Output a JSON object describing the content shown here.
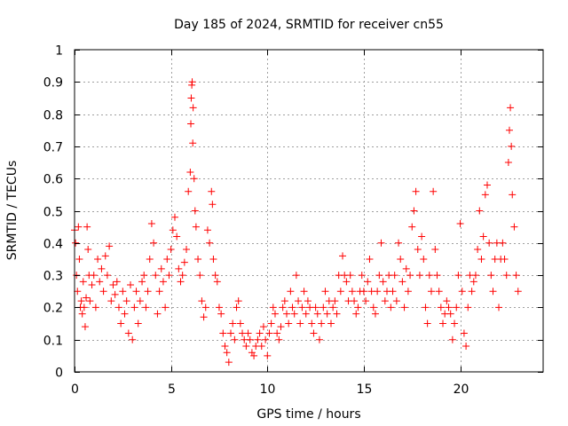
{
  "chart_data": {
    "type": "scatter",
    "title": "Day 185 of 2024, SRMTID for receiver cn55",
    "xlabel": "GPS time / hours",
    "ylabel": "SRMTID / TECUs",
    "xlim": [
      0,
      24.3
    ],
    "ylim": [
      0,
      1
    ],
    "x_ticks": [
      0,
      5,
      10,
      15,
      20
    ],
    "x_tick_labels": [
      "0",
      "5",
      "10",
      "15",
      "20"
    ],
    "y_ticks": [
      0,
      0.1,
      0.2,
      0.3,
      0.4,
      0.5,
      0.6,
      0.7,
      0.8,
      0.9,
      1
    ],
    "y_tick_labels": [
      "0",
      "0.1",
      "0.2",
      "0.3",
      "0.4",
      "0.5",
      "0.6",
      "0.7",
      "0.8",
      "0.9",
      "1"
    ],
    "grid": true,
    "marker": "plus",
    "color": "#ff0000",
    "series": [
      {
        "name": "cn55",
        "points": [
          [
            0.0,
            0.44
          ],
          [
            0.05,
            0.4
          ],
          [
            0.1,
            0.3
          ],
          [
            0.15,
            0.25
          ],
          [
            0.2,
            0.45
          ],
          [
            0.25,
            0.35
          ],
          [
            0.3,
            0.2
          ],
          [
            0.35,
            0.22
          ],
          [
            0.4,
            0.18
          ],
          [
            0.45,
            0.28
          ],
          [
            0.5,
            0.2
          ],
          [
            0.55,
            0.14
          ],
          [
            0.6,
            0.23
          ],
          [
            0.65,
            0.45
          ],
          [
            0.7,
            0.38
          ],
          [
            0.75,
            0.3
          ],
          [
            0.8,
            0.22
          ],
          [
            0.9,
            0.27
          ],
          [
            1.0,
            0.3
          ],
          [
            1.1,
            0.2
          ],
          [
            1.2,
            0.35
          ],
          [
            1.3,
            0.28
          ],
          [
            1.4,
            0.32
          ],
          [
            1.5,
            0.25
          ],
          [
            1.6,
            0.36
          ],
          [
            1.7,
            0.3
          ],
          [
            1.8,
            0.39
          ],
          [
            1.9,
            0.22
          ],
          [
            2.0,
            0.27
          ],
          [
            2.1,
            0.24
          ],
          [
            2.2,
            0.28
          ],
          [
            2.3,
            0.2
          ],
          [
            2.4,
            0.15
          ],
          [
            2.5,
            0.25
          ],
          [
            2.6,
            0.18
          ],
          [
            2.7,
            0.22
          ],
          [
            2.8,
            0.12
          ],
          [
            2.9,
            0.27
          ],
          [
            3.0,
            0.1
          ],
          [
            3.1,
            0.2
          ],
          [
            3.2,
            0.25
          ],
          [
            3.3,
            0.15
          ],
          [
            3.4,
            0.22
          ],
          [
            3.5,
            0.28
          ],
          [
            3.6,
            0.3
          ],
          [
            3.7,
            0.2
          ],
          [
            3.8,
            0.25
          ],
          [
            3.9,
            0.35
          ],
          [
            4.0,
            0.46
          ],
          [
            4.1,
            0.4
          ],
          [
            4.2,
            0.3
          ],
          [
            4.3,
            0.18
          ],
          [
            4.4,
            0.25
          ],
          [
            4.5,
            0.32
          ],
          [
            4.6,
            0.28
          ],
          [
            4.7,
            0.2
          ],
          [
            4.8,
            0.35
          ],
          [
            4.9,
            0.3
          ],
          [
            5.0,
            0.38
          ],
          [
            5.1,
            0.44
          ],
          [
            5.2,
            0.48
          ],
          [
            5.3,
            0.42
          ],
          [
            5.4,
            0.32
          ],
          [
            5.5,
            0.28
          ],
          [
            5.6,
            0.3
          ],
          [
            5.7,
            0.34
          ],
          [
            5.8,
            0.38
          ],
          [
            5.9,
            0.56
          ],
          [
            6.0,
            0.62
          ],
          [
            6.03,
            0.77
          ],
          [
            6.05,
            0.85
          ],
          [
            6.08,
            0.89
          ],
          [
            6.1,
            0.9
          ],
          [
            6.13,
            0.71
          ],
          [
            6.15,
            0.82
          ],
          [
            6.2,
            0.6
          ],
          [
            6.25,
            0.5
          ],
          [
            6.3,
            0.45
          ],
          [
            6.4,
            0.35
          ],
          [
            6.5,
            0.3
          ],
          [
            6.6,
            0.22
          ],
          [
            6.7,
            0.17
          ],
          [
            6.8,
            0.2
          ],
          [
            6.9,
            0.44
          ],
          [
            7.0,
            0.4
          ],
          [
            7.1,
            0.56
          ],
          [
            7.15,
            0.52
          ],
          [
            7.2,
            0.35
          ],
          [
            7.3,
            0.3
          ],
          [
            7.4,
            0.28
          ],
          [
            7.5,
            0.2
          ],
          [
            7.6,
            0.18
          ],
          [
            7.7,
            0.12
          ],
          [
            7.8,
            0.08
          ],
          [
            7.9,
            0.06
          ],
          [
            8.0,
            0.03
          ],
          [
            8.1,
            0.12
          ],
          [
            8.2,
            0.15
          ],
          [
            8.3,
            0.1
          ],
          [
            8.4,
            0.2
          ],
          [
            8.5,
            0.22
          ],
          [
            8.6,
            0.15
          ],
          [
            8.7,
            0.12
          ],
          [
            8.8,
            0.1
          ],
          [
            8.9,
            0.08
          ],
          [
            9.0,
            0.12
          ],
          [
            9.1,
            0.1
          ],
          [
            9.2,
            0.06
          ],
          [
            9.3,
            0.05
          ],
          [
            9.4,
            0.08
          ],
          [
            9.5,
            0.1
          ],
          [
            9.6,
            0.12
          ],
          [
            9.7,
            0.08
          ],
          [
            9.8,
            0.14
          ],
          [
            9.9,
            0.1
          ],
          [
            10.0,
            0.05
          ],
          [
            10.1,
            0.12
          ],
          [
            10.2,
            0.15
          ],
          [
            10.3,
            0.2
          ],
          [
            10.4,
            0.18
          ],
          [
            10.5,
            0.12
          ],
          [
            10.6,
            0.1
          ],
          [
            10.7,
            0.14
          ],
          [
            10.8,
            0.2
          ],
          [
            10.9,
            0.22
          ],
          [
            11.0,
            0.18
          ],
          [
            11.1,
            0.15
          ],
          [
            11.2,
            0.25
          ],
          [
            11.3,
            0.2
          ],
          [
            11.4,
            0.18
          ],
          [
            11.5,
            0.3
          ],
          [
            11.6,
            0.22
          ],
          [
            11.7,
            0.15
          ],
          [
            11.8,
            0.2
          ],
          [
            11.9,
            0.25
          ],
          [
            12.0,
            0.18
          ],
          [
            12.1,
            0.22
          ],
          [
            12.2,
            0.2
          ],
          [
            12.3,
            0.15
          ],
          [
            12.4,
            0.12
          ],
          [
            12.5,
            0.2
          ],
          [
            12.6,
            0.18
          ],
          [
            12.7,
            0.1
          ],
          [
            12.8,
            0.15
          ],
          [
            12.9,
            0.2
          ],
          [
            13.0,
            0.25
          ],
          [
            13.1,
            0.18
          ],
          [
            13.2,
            0.22
          ],
          [
            13.3,
            0.15
          ],
          [
            13.4,
            0.2
          ],
          [
            13.5,
            0.22
          ],
          [
            13.6,
            0.18
          ],
          [
            13.7,
            0.3
          ],
          [
            13.8,
            0.25
          ],
          [
            13.9,
            0.36
          ],
          [
            14.0,
            0.3
          ],
          [
            14.1,
            0.28
          ],
          [
            14.2,
            0.22
          ],
          [
            14.3,
            0.3
          ],
          [
            14.4,
            0.25
          ],
          [
            14.5,
            0.22
          ],
          [
            14.6,
            0.18
          ],
          [
            14.7,
            0.2
          ],
          [
            14.8,
            0.25
          ],
          [
            14.9,
            0.3
          ],
          [
            15.0,
            0.25
          ],
          [
            15.1,
            0.22
          ],
          [
            15.2,
            0.28
          ],
          [
            15.3,
            0.35
          ],
          [
            15.4,
            0.25
          ],
          [
            15.5,
            0.2
          ],
          [
            15.6,
            0.18
          ],
          [
            15.7,
            0.25
          ],
          [
            15.8,
            0.3
          ],
          [
            15.9,
            0.4
          ],
          [
            16.0,
            0.28
          ],
          [
            16.1,
            0.22
          ],
          [
            16.2,
            0.25
          ],
          [
            16.3,
            0.3
          ],
          [
            16.4,
            0.2
          ],
          [
            16.5,
            0.25
          ],
          [
            16.6,
            0.3
          ],
          [
            16.7,
            0.22
          ],
          [
            16.8,
            0.4
          ],
          [
            16.9,
            0.35
          ],
          [
            17.0,
            0.28
          ],
          [
            17.1,
            0.2
          ],
          [
            17.2,
            0.32
          ],
          [
            17.3,
            0.25
          ],
          [
            17.4,
            0.3
          ],
          [
            17.5,
            0.45
          ],
          [
            17.6,
            0.5
          ],
          [
            17.7,
            0.56
          ],
          [
            17.8,
            0.38
          ],
          [
            17.9,
            0.3
          ],
          [
            18.0,
            0.42
          ],
          [
            18.1,
            0.35
          ],
          [
            18.2,
            0.2
          ],
          [
            18.3,
            0.15
          ],
          [
            18.4,
            0.3
          ],
          [
            18.5,
            0.25
          ],
          [
            18.6,
            0.56
          ],
          [
            18.7,
            0.38
          ],
          [
            18.8,
            0.3
          ],
          [
            18.9,
            0.25
          ],
          [
            19.0,
            0.2
          ],
          [
            19.1,
            0.15
          ],
          [
            19.2,
            0.18
          ],
          [
            19.3,
            0.22
          ],
          [
            19.4,
            0.2
          ],
          [
            19.5,
            0.18
          ],
          [
            19.6,
            0.1
          ],
          [
            19.7,
            0.15
          ],
          [
            19.8,
            0.2
          ],
          [
            19.9,
            0.3
          ],
          [
            20.0,
            0.46
          ],
          [
            20.1,
            0.25
          ],
          [
            20.2,
            0.12
          ],
          [
            20.3,
            0.08
          ],
          [
            20.4,
            0.2
          ],
          [
            20.5,
            0.3
          ],
          [
            20.6,
            0.25
          ],
          [
            20.7,
            0.28
          ],
          [
            20.8,
            0.3
          ],
          [
            20.9,
            0.38
          ],
          [
            21.0,
            0.5
          ],
          [
            21.1,
            0.35
          ],
          [
            21.2,
            0.42
          ],
          [
            21.3,
            0.55
          ],
          [
            21.4,
            0.58
          ],
          [
            21.5,
            0.4
          ],
          [
            21.6,
            0.3
          ],
          [
            21.7,
            0.25
          ],
          [
            21.8,
            0.35
          ],
          [
            21.9,
            0.4
          ],
          [
            22.0,
            0.2
          ],
          [
            22.1,
            0.35
          ],
          [
            22.2,
            0.4
          ],
          [
            22.3,
            0.35
          ],
          [
            22.4,
            0.3
          ],
          [
            22.5,
            0.65
          ],
          [
            22.55,
            0.75
          ],
          [
            22.6,
            0.82
          ],
          [
            22.65,
            0.7
          ],
          [
            22.7,
            0.55
          ],
          [
            22.8,
            0.45
          ],
          [
            22.9,
            0.3
          ],
          [
            23.0,
            0.25
          ]
        ]
      }
    ]
  }
}
